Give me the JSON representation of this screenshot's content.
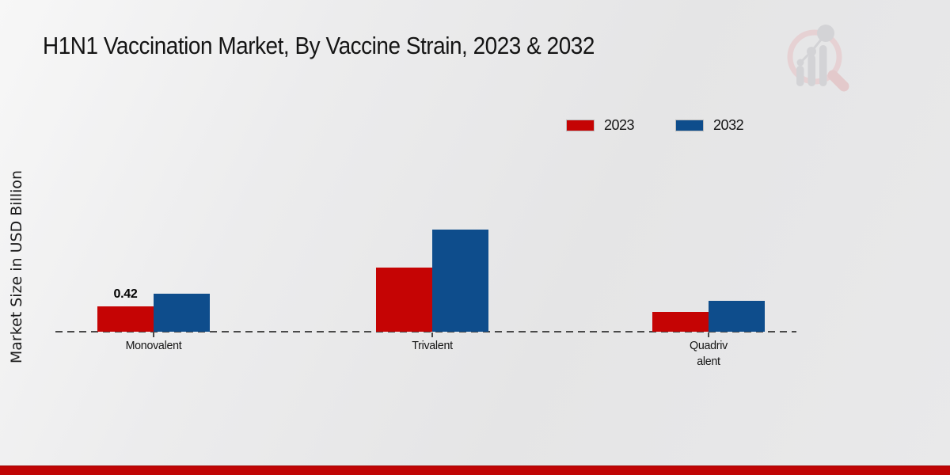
{
  "page": {
    "title": "H1N1 Vaccination Market, By Vaccine Strain, 2023 & 2032",
    "y_axis_label": "Market Size in USD Billion"
  },
  "colors": {
    "red_2023": "#c50404",
    "blue_2032": "#0e4d8c",
    "footer_band": "#c00505",
    "baseline": "#4a4a4a",
    "text": "#141414"
  },
  "legend": {
    "items": [
      {
        "label": "2023",
        "color": "#c50404"
      },
      {
        "label": "2032",
        "color": "#0e4d8c"
      }
    ]
  },
  "watermark": {
    "name": "bar-chart-magnifier-logo"
  },
  "chart_data": {
    "type": "bar",
    "title": "H1N1 Vaccination Market, By Vaccine Strain, 2023 & 2032",
    "xlabel": "",
    "ylabel": "Market Size in USD Billion",
    "categories": [
      "Monovalent",
      "Trivalent",
      "Quadrivalent"
    ],
    "category_display": [
      "Monovalent",
      "Trivalent",
      "Quadriv\nalent"
    ],
    "series": [
      {
        "name": "2023",
        "color": "#c50404",
        "values": [
          0.42,
          1.07,
          0.33
        ],
        "value_labels": [
          "0.42",
          "",
          ""
        ]
      },
      {
        "name": "2032",
        "color": "#0e4d8c",
        "values": [
          0.63,
          1.7,
          0.51
        ],
        "value_labels": [
          "",
          "",
          ""
        ]
      }
    ],
    "ylim": [
      0,
      2.0
    ],
    "grid": false,
    "legend_position": "top-right",
    "x_axis_style": "dashed",
    "y_axis_ticks_visible": false
  }
}
